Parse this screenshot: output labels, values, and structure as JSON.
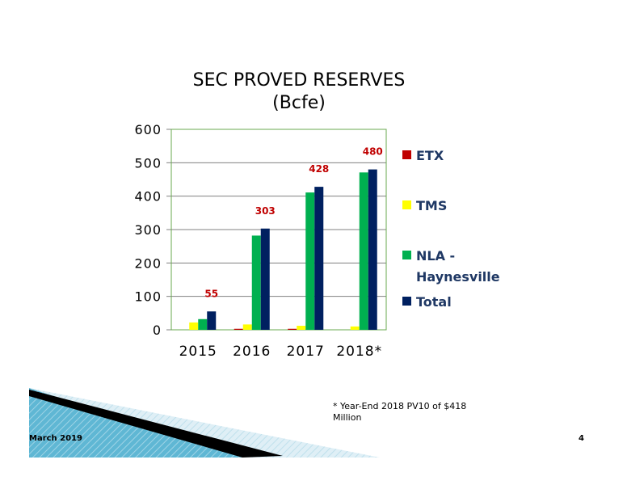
{
  "slide": {
    "title_line1": "SEC PROVED RESERVES",
    "title_line2": "(Bcfe)",
    "footnote": "* Year-End 2018 PV10 of $418 Million",
    "footer_date": "March 2019",
    "page_number": "4"
  },
  "colors": {
    "ETX": "#c00000",
    "TMS": "#ffff00",
    "NLA - Haynesville": "#00b050",
    "Total": "#002060",
    "data_label": "#c00000",
    "plot_border": "#6aa84f"
  },
  "legend": [
    {
      "label": "ETX",
      "color": "#c00000"
    },
    {
      "label": "TMS",
      "color": "#ffff00"
    },
    {
      "label": "NLA -\nHaynesville",
      "color": "#00b050"
    },
    {
      "label": "Total",
      "color": "#002060"
    }
  ],
  "chart_data": {
    "type": "bar",
    "categories": [
      "2015",
      "2016",
      "2017",
      "2018*"
    ],
    "series": [
      {
        "name": "ETX",
        "values": [
          0,
          3,
          3,
          0
        ]
      },
      {
        "name": "TMS",
        "values": [
          22,
          16,
          12,
          10
        ]
      },
      {
        "name": "NLA - Haynesville",
        "values": [
          32,
          282,
          411,
          471
        ]
      },
      {
        "name": "Total",
        "values": [
          55,
          303,
          428,
          480
        ]
      }
    ],
    "data_labels": [
      "55",
      "303",
      "428",
      "480"
    ],
    "yticks": [
      "0",
      "100",
      "200",
      "300",
      "400",
      "500",
      "600"
    ],
    "ylim": [
      0,
      600
    ],
    "title": "SEC PROVED RESERVES (Bcfe)",
    "xlabel": "",
    "ylabel": "",
    "grid": true,
    "legend_position": "right"
  }
}
